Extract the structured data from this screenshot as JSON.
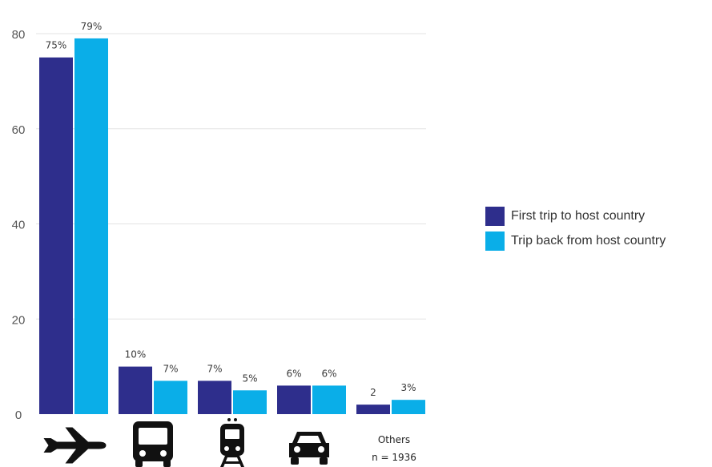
{
  "chart_data": {
    "type": "bar",
    "categories": [
      "plane",
      "bus",
      "train",
      "car",
      "Others"
    ],
    "category_icons": [
      "plane-icon",
      "bus-icon",
      "train-icon",
      "car-icon",
      null
    ],
    "category_sublabels": [
      "",
      "",
      "",
      "",
      "n = 1936"
    ],
    "series": [
      {
        "name": "First trip to host country",
        "color": "#2e2e8c",
        "values": [
          75,
          10,
          7,
          6,
          2
        ],
        "labels": [
          "75%",
          "10%",
          "7%",
          "6%",
          "2"
        ]
      },
      {
        "name": "Trip back from host country",
        "color": "#0aaee8",
        "values": [
          79,
          7,
          5,
          6,
          3
        ],
        "labels": [
          "79%",
          "7%",
          "5%",
          "6%",
          "3%"
        ]
      }
    ],
    "ylim": [
      0,
      80
    ],
    "yticks": [
      0,
      20,
      40,
      60,
      80
    ],
    "grid": true,
    "legend_position": "right",
    "title": "",
    "xlabel": "",
    "ylabel": ""
  }
}
